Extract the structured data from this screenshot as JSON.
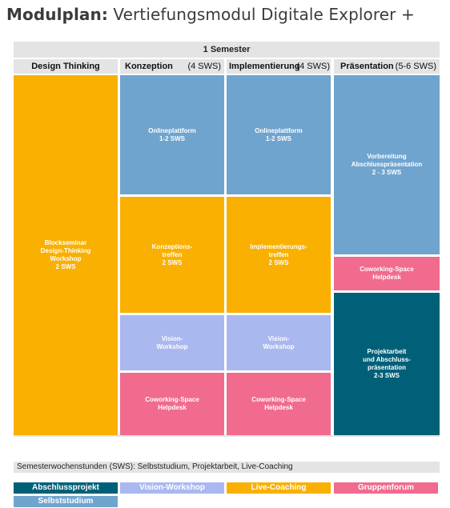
{
  "title": {
    "bold": "Modulplan:",
    "rest": " Vertiefungsmodul Digitale Explorer +"
  },
  "semester": "1 Semester",
  "columns": [
    {
      "heading": "Design Thinking",
      "sws": ""
    },
    {
      "heading": "Konzeption",
      "sws": "(4 SWS)"
    },
    {
      "heading": "Implementierung",
      "sws": "(4 SWS)"
    },
    {
      "heading": "Präsentation",
      "sws": "(5-6 SWS)"
    }
  ],
  "blocks": {
    "dt_workshop": "Blockseminar\nDesign-Thinking\nWorkshop\n2 SWS",
    "konz_online": "Onlineplattform\n1-2 SWS",
    "konz_treffen": "Konzeptions-\ntreffen\n2 SWS",
    "konz_vision": "Vision-\nWorkshop",
    "konz_cowork": "Coworking-Space\nHelpdesk",
    "impl_online": "Onlineplattform\n1-2 SWS",
    "impl_treffen": "Implementierungs-\ntreffen\n2 SWS",
    "impl_vision": "Vision-\nWorkshop",
    "impl_cowork": "Coworking-Space\nHelpdesk",
    "pres_vorb": "Vorbereitung\nAbschlusspräsentation\n2 - 3 SWS",
    "pres_cowork": "Coworking-Space\nHelpdesk",
    "pres_projekt": "Projektarbeit\nund Abschluss-\npräsentation\n2-3 SWS"
  },
  "footnote": "Semesterwochenstunden (SWS): Selbststudium, Projektarbeit, Live-Coaching",
  "legend": [
    "Abschlussprojekt",
    "Vision-Workshop",
    "Live-Coaching",
    "Gruppenforum",
    "Selbststudium"
  ],
  "colors": {
    "orange": "#f9b000",
    "blue": "#6fa4cf",
    "lavender": "#aab8f0",
    "pink": "#f06b8d",
    "teal": "#006078",
    "gray": "#e4e4e4"
  }
}
